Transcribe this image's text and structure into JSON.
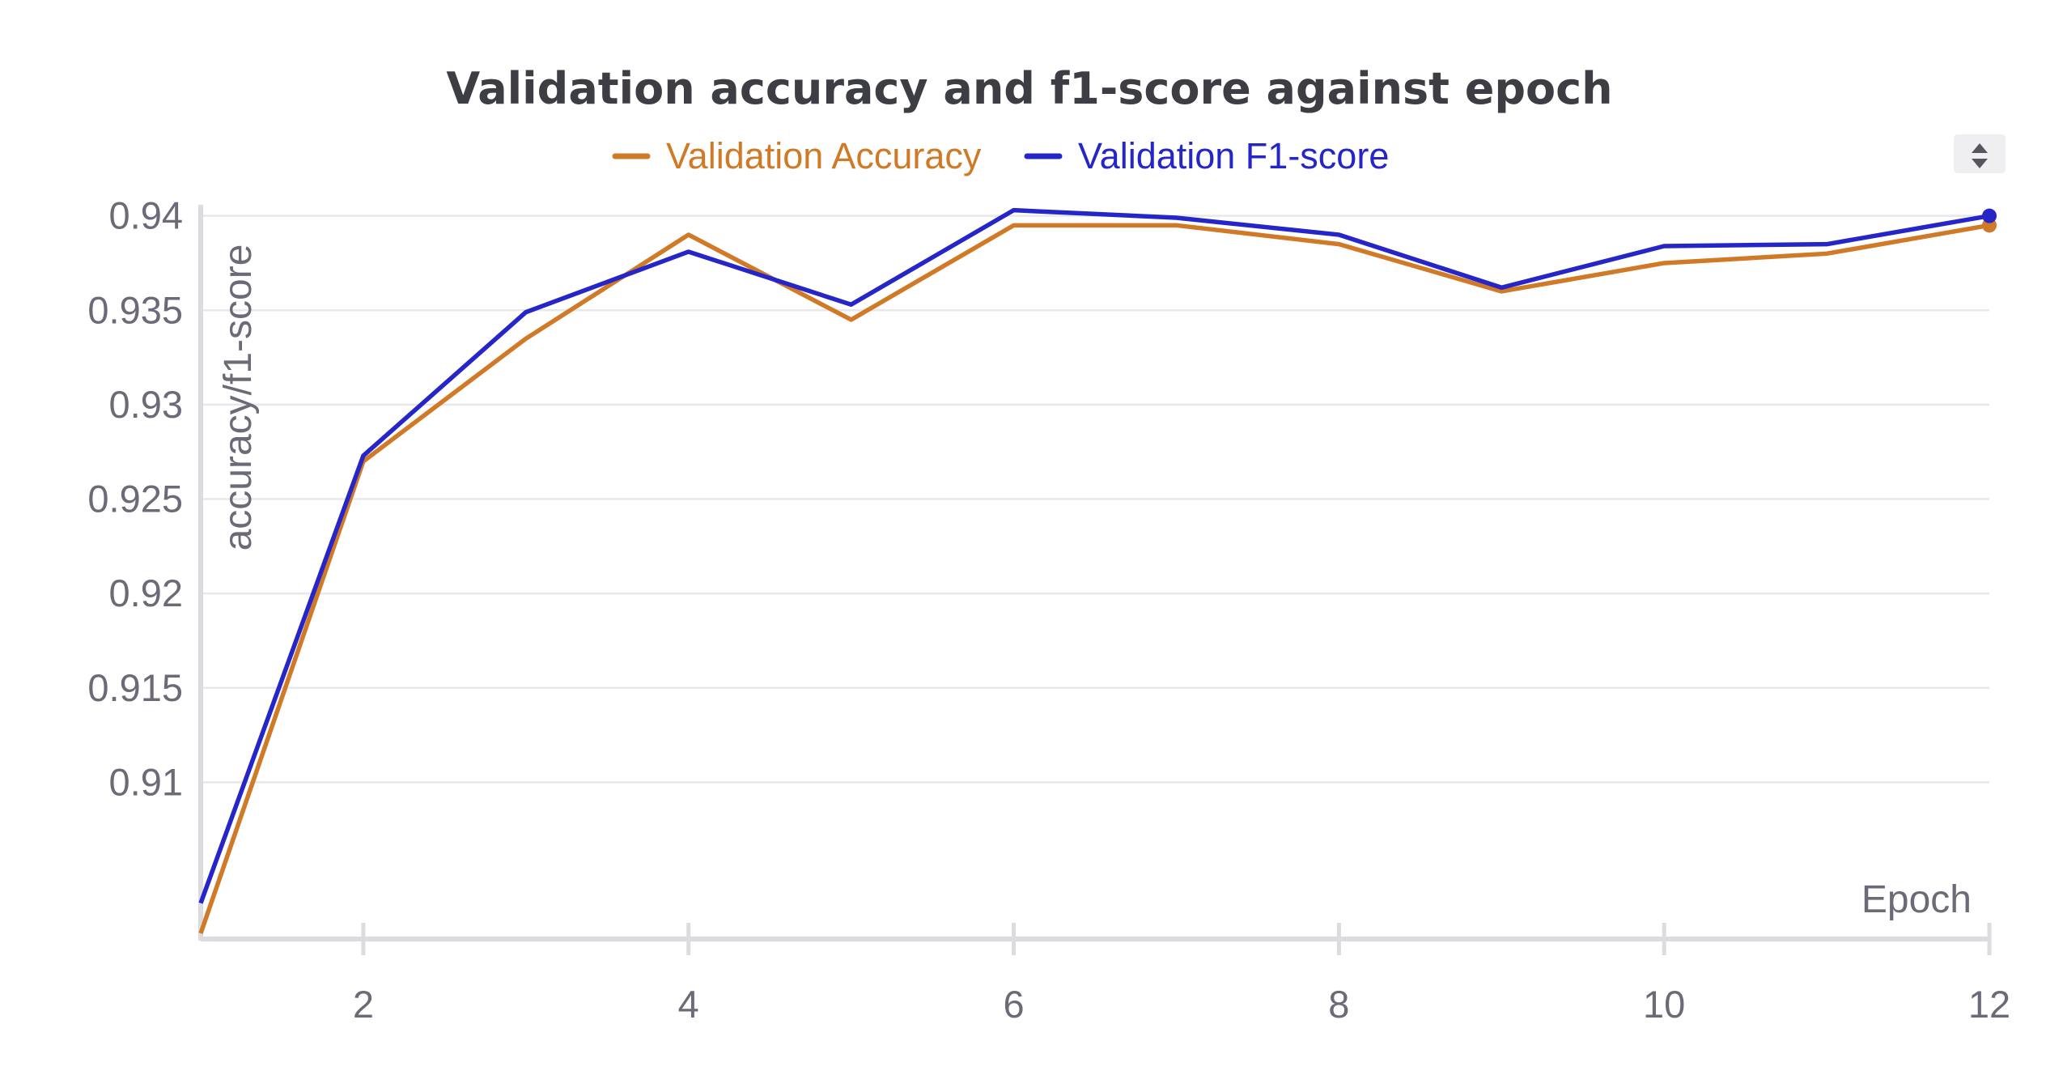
{
  "chart_data": {
    "type": "line",
    "title": "Validation accuracy and f1-score against epoch",
    "xlabel": "Epoch",
    "ylabel": "accuracy/f1-score",
    "x": [
      1,
      2,
      3,
      4,
      5,
      6,
      7,
      8,
      9,
      10,
      11,
      12
    ],
    "xlim": [
      1,
      12
    ],
    "ylim": [
      0.9017,
      0.9405
    ],
    "xticks": [
      2,
      4,
      6,
      8,
      10,
      12
    ],
    "yticks": [
      0.91,
      0.915,
      0.92,
      0.925,
      0.93,
      0.935,
      0.94
    ],
    "xtick_labels": [
      "2",
      "4",
      "6",
      "8",
      "10",
      "12"
    ],
    "ytick_labels": [
      "0.91",
      "0.915",
      "0.92",
      "0.925",
      "0.93",
      "0.935",
      "0.94"
    ],
    "grid": "horizontal",
    "legend": "top-center",
    "series": [
      {
        "name": "Validation Accuracy",
        "color": "#d07a28",
        "values": [
          0.902,
          0.927,
          0.9335,
          0.939,
          0.9345,
          0.9395,
          0.9395,
          0.9385,
          0.936,
          0.9375,
          0.938,
          0.9395
        ]
      },
      {
        "name": "Validation F1-score",
        "color": "#2626c8",
        "values": [
          0.9036,
          0.9273,
          0.9349,
          0.9381,
          0.9353,
          0.9403,
          0.9399,
          0.939,
          0.9362,
          0.9384,
          0.9385,
          0.94
        ]
      }
    ]
  },
  "controls": {
    "sort_icon": "sort-arrows-icon"
  }
}
